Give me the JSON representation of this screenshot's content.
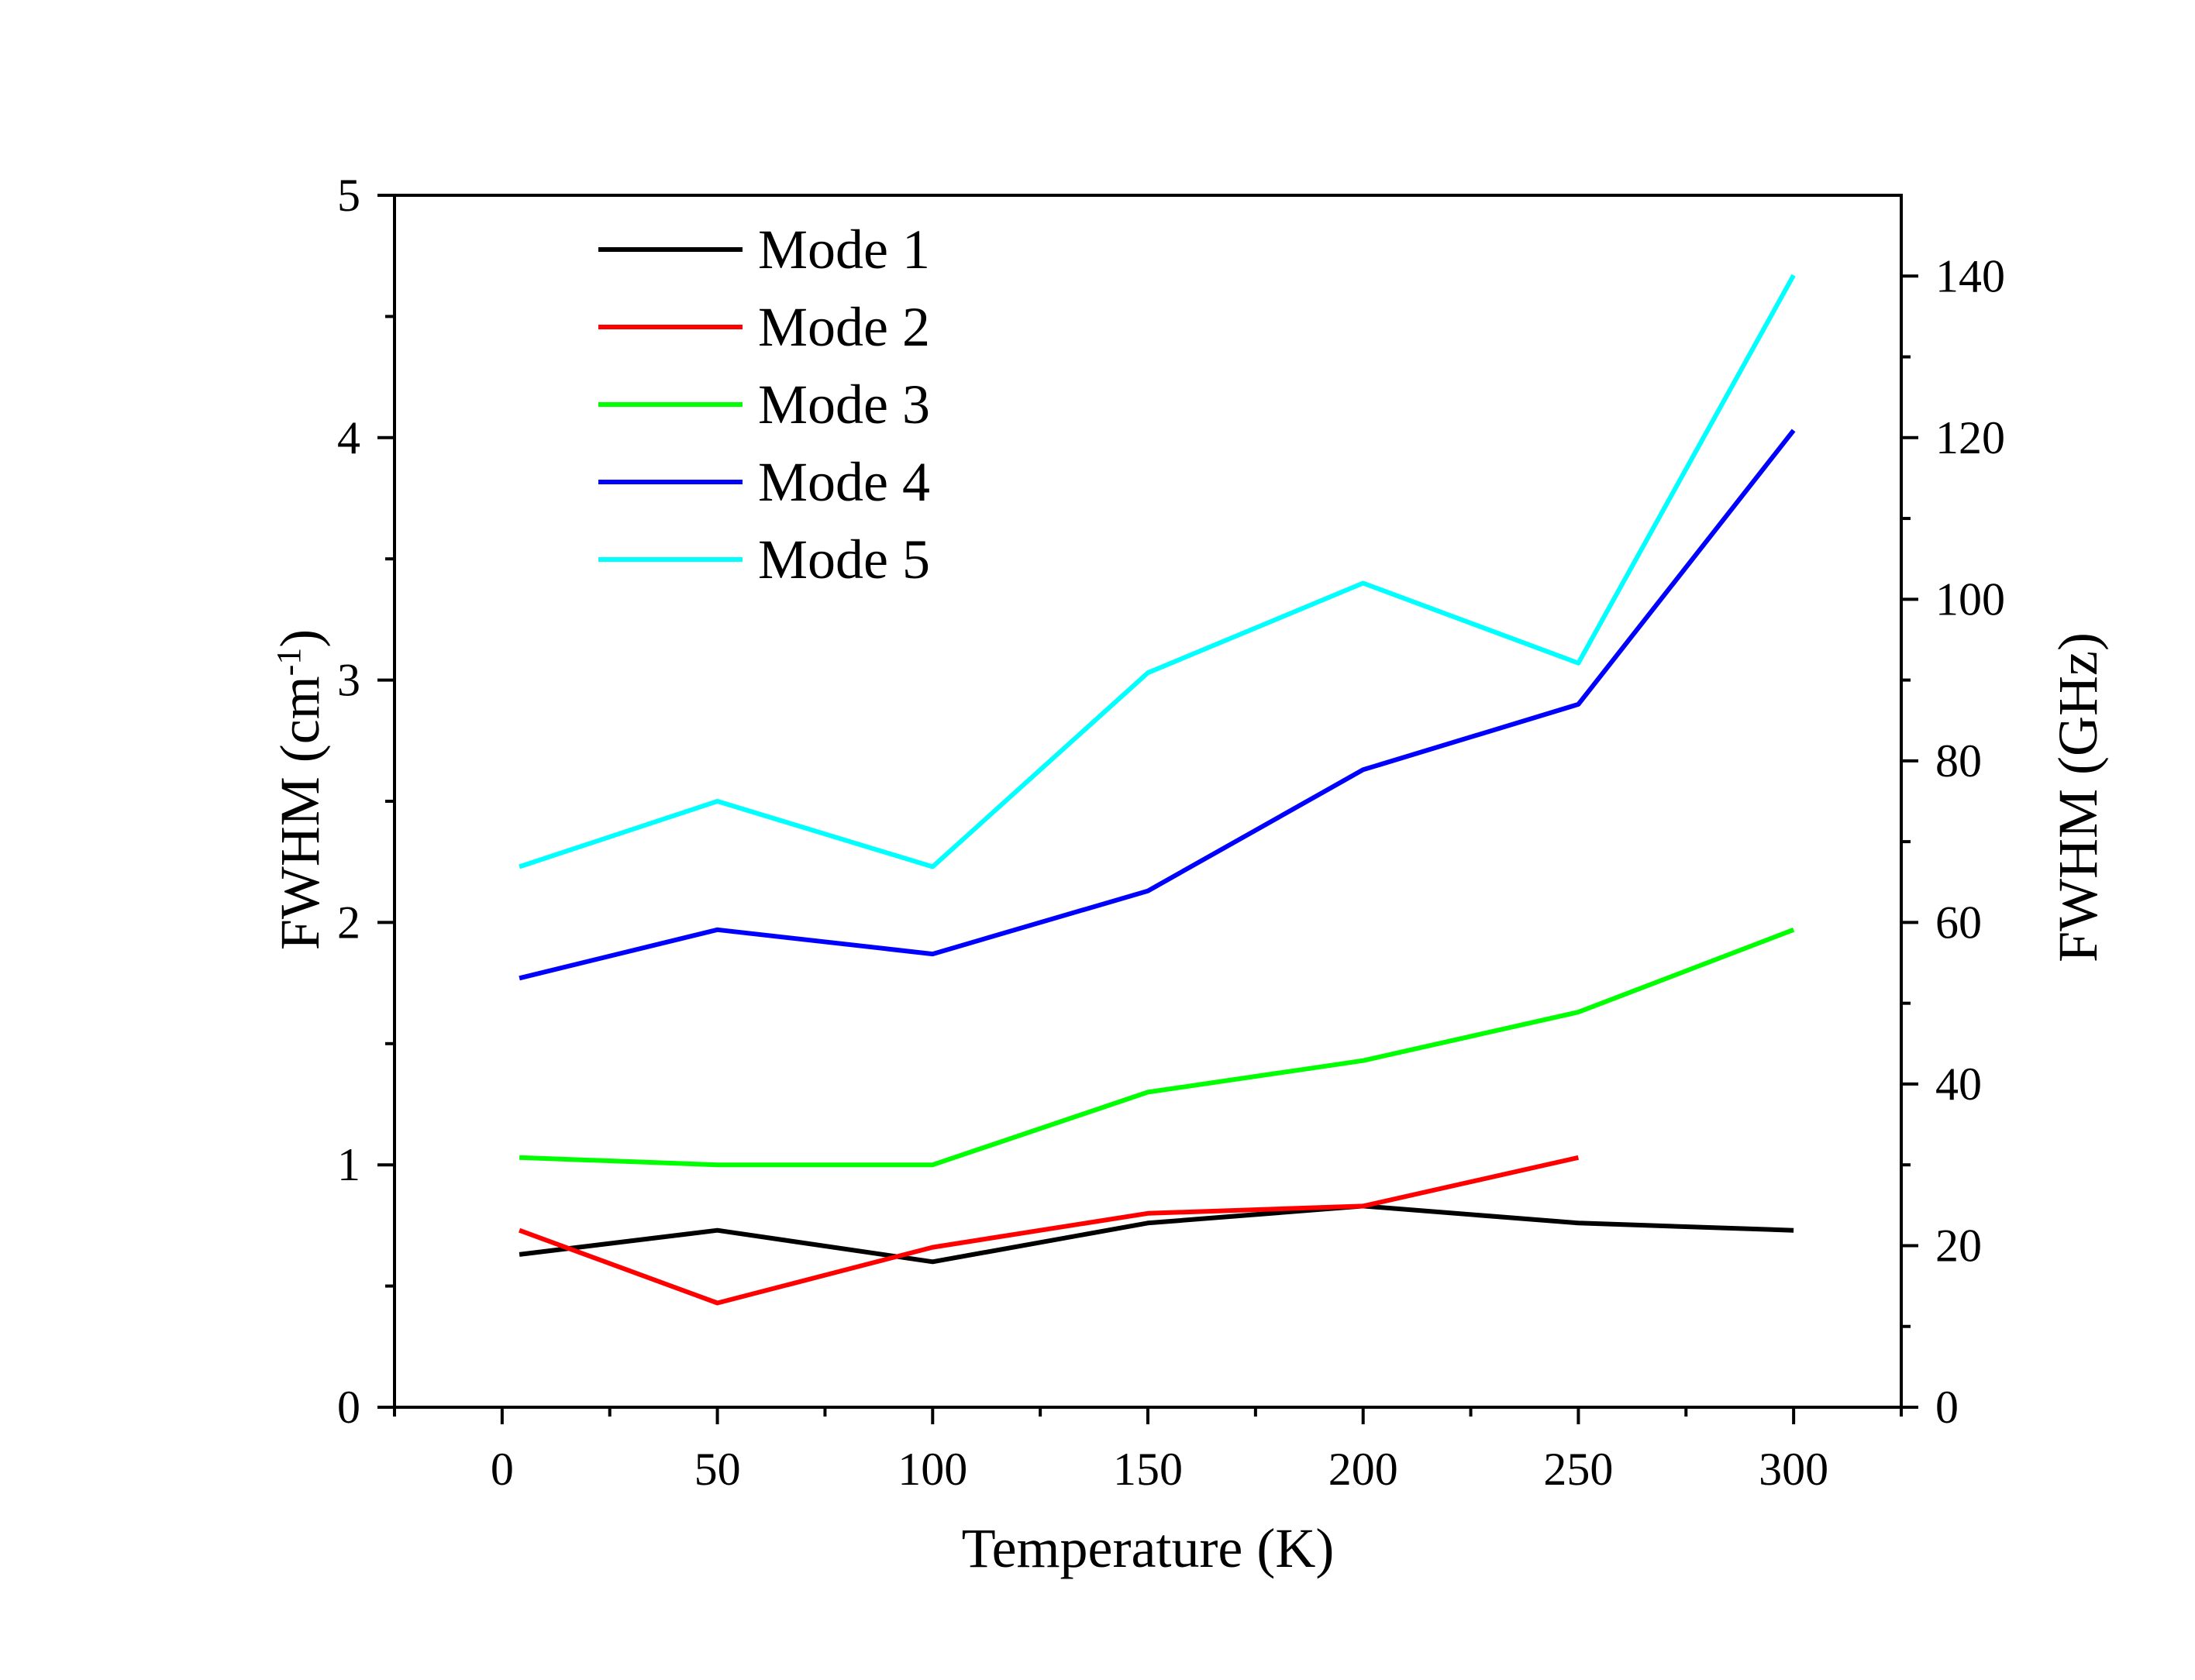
{
  "chart_data": {
    "type": "line",
    "xlabel": "Temperature (K)",
    "ylabel": {
      "main": "FWHM (cm",
      "sup": "-1",
      "tail": ")"
    },
    "y2label": "FWHM (GHz)",
    "xlim": [
      -25,
      325
    ],
    "ylim": [
      0,
      5
    ],
    "y2lim": [
      0,
      150
    ],
    "xticks": [
      0,
      50,
      100,
      150,
      200,
      250,
      300
    ],
    "xtick_labels": [
      "0",
      "50",
      "100",
      "150",
      "200",
      "250",
      "300"
    ],
    "yticks": [
      0,
      1,
      2,
      3,
      4,
      5
    ],
    "ytick_labels": [
      "0",
      "1",
      "2",
      "3",
      "4",
      "5"
    ],
    "y2ticks": [
      0,
      20,
      40,
      60,
      80,
      100,
      120,
      140
    ],
    "y2tick_labels": [
      "0",
      "20",
      "40",
      "60",
      "80",
      "100",
      "120",
      "140"
    ],
    "grid": false,
    "legend_position": "top-left",
    "series": [
      {
        "name": "Mode 1",
        "color": "#000000",
        "x": [
          4,
          50,
          100,
          150,
          200,
          250,
          300
        ],
        "y": [
          0.63,
          0.73,
          0.6,
          0.76,
          0.83,
          0.76,
          0.73
        ]
      },
      {
        "name": "Mode 2",
        "color": "#ff0000",
        "x": [
          4,
          50,
          100,
          150,
          200,
          250
        ],
        "y": [
          0.73,
          0.43,
          0.66,
          0.8,
          0.83,
          1.03
        ]
      },
      {
        "name": "Mode 3",
        "color": "#00ff00",
        "x": [
          4,
          50,
          100,
          150,
          200,
          250,
          300
        ],
        "y": [
          1.03,
          1.0,
          1.0,
          1.3,
          1.43,
          1.63,
          1.97
        ]
      },
      {
        "name": "Mode 4",
        "color": "#0000ff",
        "x": [
          4,
          50,
          100,
          150,
          200,
          250,
          300
        ],
        "y": [
          1.77,
          1.97,
          1.87,
          2.13,
          2.63,
          2.9,
          4.03
        ]
      },
      {
        "name": "Mode 5",
        "color": "#00ffff",
        "x": [
          4,
          50,
          100,
          150,
          200,
          250,
          300
        ],
        "y": [
          2.23,
          2.5,
          2.23,
          3.03,
          3.4,
          3.07,
          4.67
        ]
      }
    ]
  }
}
